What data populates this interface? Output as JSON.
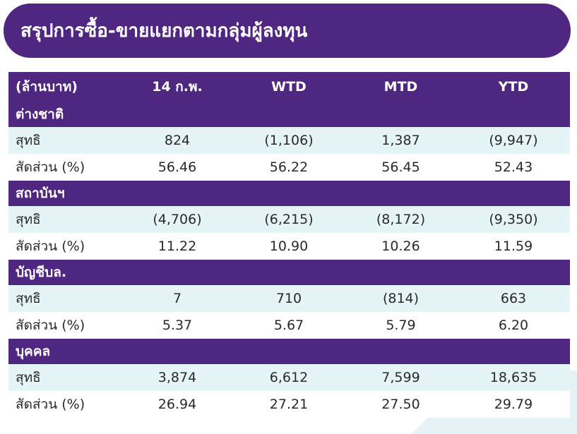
{
  "title": "สรุปการซื้อ-ขายแยกตามกลุ่มผู้ลงทุน",
  "header": {
    "unit": "(ล้านบาท)",
    "columns": [
      "14 ก.พ.",
      "WTD",
      "MTD",
      "YTD"
    ]
  },
  "sections": [
    {
      "name": "ต่างชาติ",
      "rows": [
        {
          "label": "สุทธิ",
          "values": [
            "824",
            "(1,106)",
            "1,387",
            "(9,947)"
          ]
        },
        {
          "label": "สัดส่วน (%)",
          "values": [
            "56.46",
            "56.22",
            "56.45",
            "52.43"
          ]
        }
      ]
    },
    {
      "name": "สถาบันฯ",
      "rows": [
        {
          "label": "สุทธิ",
          "values": [
            "(4,706)",
            "(6,215)",
            "(8,172)",
            "(9,350)"
          ]
        },
        {
          "label": "สัดส่วน (%)",
          "values": [
            "11.22",
            "10.90",
            "10.26",
            "11.59"
          ]
        }
      ]
    },
    {
      "name": "บัญชีบล.",
      "rows": [
        {
          "label": "สุทธิ",
          "values": [
            "7",
            "710",
            "(814)",
            "663"
          ]
        },
        {
          "label": "สัดส่วน (%)",
          "values": [
            "5.37",
            "5.67",
            "5.79",
            "6.20"
          ]
        }
      ]
    },
    {
      "name": "บุคคล",
      "rows": [
        {
          "label": "สุทธิ",
          "values": [
            "3,874",
            "6,612",
            "7,599",
            "18,635"
          ]
        },
        {
          "label": "สัดส่วน (%)",
          "values": [
            "26.94",
            "27.21",
            "27.50",
            "29.79"
          ]
        }
      ]
    }
  ],
  "colors": {
    "header_purple": "#4f2680",
    "net_row_bg": "#e4f4f7",
    "pct_row_bg": "#ffffff"
  }
}
